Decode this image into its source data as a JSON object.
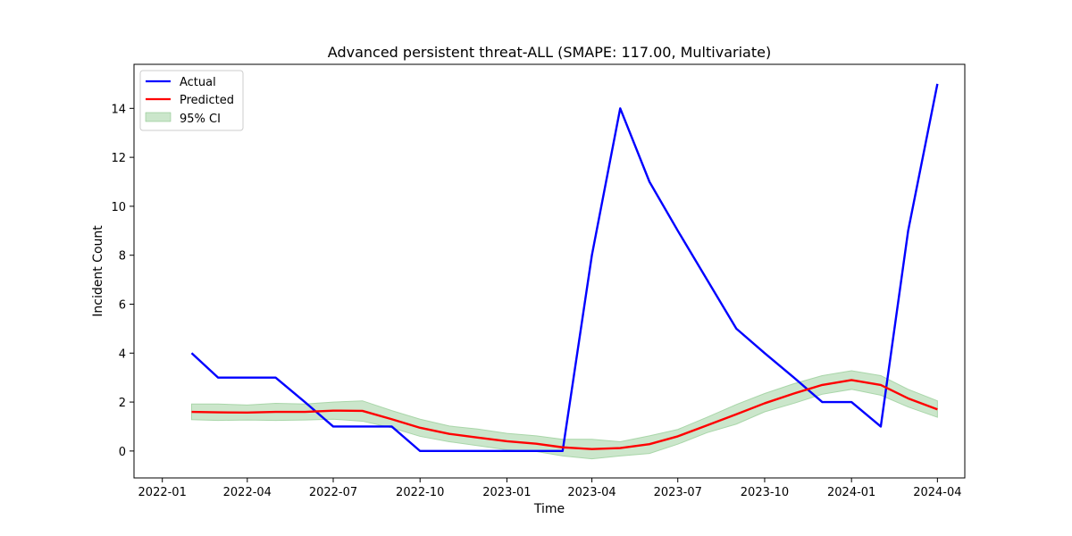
{
  "chart_data": {
    "type": "line",
    "title": "Advanced persistent threat-ALL (SMAPE: 117.00, Multivariate)",
    "xlabel": "Time",
    "ylabel": "Incident Count",
    "x_axis": "date",
    "xlim": [
      "2021-12-02",
      "2024-04-30"
    ],
    "ylim": [
      -1.1,
      15.8
    ],
    "x_ticks": [
      "2022-01-01",
      "2022-04-01",
      "2022-07-01",
      "2022-10-01",
      "2023-01-01",
      "2023-04-01",
      "2023-07-01",
      "2023-10-01",
      "2024-01-01",
      "2024-04-01"
    ],
    "x_tick_labels": [
      "2022-01",
      "2022-04",
      "2022-07",
      "2022-10",
      "2023-01",
      "2023-04",
      "2023-07",
      "2023-10",
      "2024-01",
      "2024-04"
    ],
    "y_ticks": [
      0,
      2,
      4,
      6,
      8,
      10,
      12,
      14
    ],
    "y_tick_labels": [
      "0",
      "2",
      "4",
      "6",
      "8",
      "10",
      "12",
      "14"
    ],
    "grid": false,
    "legend_position": "upper-left",
    "x": [
      "2022-02-01",
      "2022-03-01",
      "2022-04-01",
      "2022-05-01",
      "2022-06-01",
      "2022-07-01",
      "2022-08-01",
      "2022-09-01",
      "2022-10-01",
      "2022-11-01",
      "2022-12-01",
      "2023-01-01",
      "2023-02-01",
      "2023-03-01",
      "2023-04-01",
      "2023-05-01",
      "2023-06-01",
      "2023-07-01",
      "2023-08-01",
      "2023-09-01",
      "2023-10-01",
      "2023-11-01",
      "2023-12-01",
      "2024-01-01",
      "2024-02-01",
      "2024-03-01",
      "2024-04-01"
    ],
    "series": [
      {
        "name": "Actual",
        "color": "#0000ff",
        "values": [
          4,
          3,
          3,
          3,
          2,
          1,
          1,
          1,
          0,
          0,
          0,
          0,
          0,
          0,
          8,
          14,
          11,
          9,
          7,
          5,
          4,
          3,
          2,
          2,
          1,
          9,
          15
        ]
      },
      {
        "name": "Predicted",
        "color": "#ff0000",
        "values": [
          1.6,
          1.58,
          1.57,
          1.6,
          1.6,
          1.65,
          1.64,
          1.3,
          0.95,
          0.7,
          0.55,
          0.4,
          0.3,
          0.15,
          0.08,
          0.12,
          0.28,
          0.6,
          1.05,
          1.5,
          1.95,
          2.35,
          2.7,
          2.9,
          2.7,
          2.15,
          1.7
        ]
      }
    ],
    "band": {
      "name": "95% CI",
      "color": "#a9d6a9",
      "lower": [
        1.28,
        1.25,
        1.27,
        1.25,
        1.27,
        1.3,
        1.22,
        0.95,
        0.6,
        0.38,
        0.22,
        0.05,
        -0.02,
        -0.2,
        -0.32,
        -0.2,
        -0.1,
        0.28,
        0.75,
        1.1,
        1.6,
        1.95,
        2.32,
        2.52,
        2.28,
        1.8,
        1.38
      ],
      "upper": [
        1.92,
        1.92,
        1.88,
        1.95,
        1.92,
        2.0,
        2.05,
        1.65,
        1.3,
        1.02,
        0.9,
        0.72,
        0.62,
        0.48,
        0.48,
        0.38,
        0.62,
        0.88,
        1.38,
        1.9,
        2.35,
        2.75,
        3.08,
        3.28,
        3.08,
        2.52,
        2.05
      ]
    }
  }
}
